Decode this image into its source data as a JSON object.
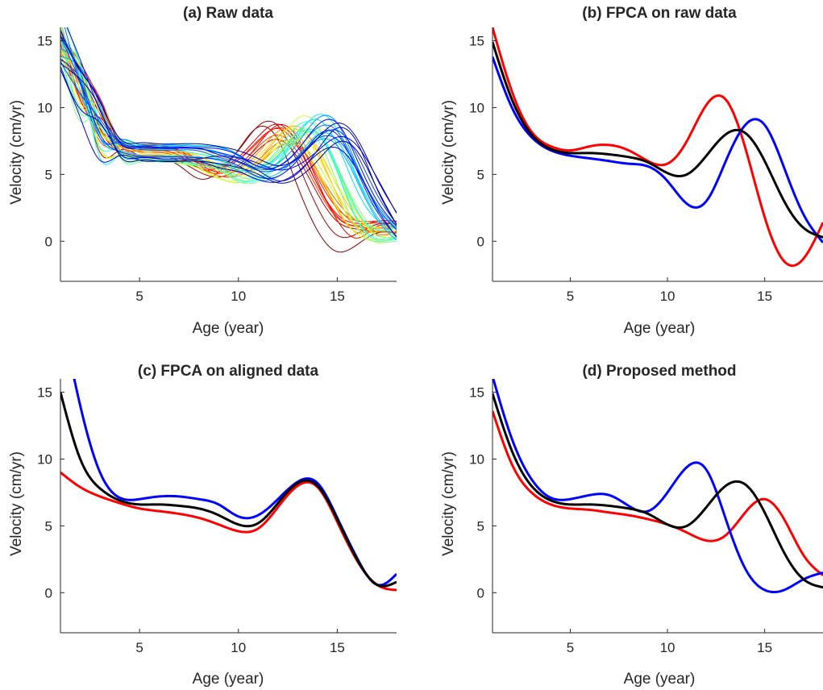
{
  "chart_data": [
    {
      "type": "line",
      "title": "(a) Raw data",
      "xlabel": "Age (year)",
      "ylabel": "Velocity (cm/yr)",
      "xlim": [
        1,
        18
      ],
      "ylim": [
        -3,
        16
      ],
      "xticks": [
        5,
        10,
        15
      ],
      "yticks": [
        0,
        5,
        10,
        15
      ],
      "grid": false,
      "style": "many individual velocity curves coloured by a jet colormap (blue to red)",
      "colormap": [
        "#00008f",
        "#0000ff",
        "#0080ff",
        "#00ffff",
        "#80ff80",
        "#ffff00",
        "#ff8000",
        "#ff0000",
        "#800000"
      ],
      "individual_curves": {
        "count": 39,
        "template_x": [
          1,
          2,
          3,
          4,
          5,
          6,
          7,
          8,
          9,
          10,
          11,
          12,
          13,
          14,
          15,
          16,
          17,
          18
        ],
        "template_y": [
          15.0,
          11.5,
          8.6,
          7.0,
          6.6,
          6.6,
          6.5,
          6.2,
          5.7,
          5.0,
          5.3,
          6.6,
          8.1,
          7.6,
          4.8,
          2.0,
          0.5,
          0.9
        ]
      }
    },
    {
      "type": "line",
      "title": "(b) FPCA on raw data",
      "xlabel": "Age (year)",
      "ylabel": "Velocity (cm/yr)",
      "xlim": [
        1,
        18
      ],
      "ylim": [
        -3,
        16
      ],
      "xticks": [
        5,
        10,
        15
      ],
      "yticks": [
        0,
        5,
        10,
        15
      ],
      "grid": false,
      "x": [
        1,
        2,
        3,
        4,
        5,
        6,
        7,
        8,
        9,
        10,
        11,
        12,
        13,
        14,
        15,
        16,
        17,
        18
      ],
      "series": [
        {
          "color": "#ff0000",
          "values": [
            16.0,
            11.2,
            8.2,
            7.1,
            6.8,
            7.1,
            7.2,
            6.8,
            6.0,
            5.8,
            7.5,
            10.2,
            10.6,
            7.0,
            1.8,
            -1.5,
            -1.3,
            1.4
          ]
        },
        {
          "color": "#0000ff",
          "values": [
            13.8,
            10.0,
            7.8,
            6.8,
            6.4,
            6.2,
            6.0,
            5.8,
            5.6,
            4.5,
            2.8,
            3.0,
            6.0,
            8.7,
            8.7,
            5.5,
            2.0,
            -0.1
          ]
        },
        {
          "color": "#000000",
          "values": [
            14.9,
            10.6,
            8.0,
            6.9,
            6.6,
            6.6,
            6.5,
            6.3,
            5.9,
            5.1,
            5.0,
            6.4,
            8.0,
            8.1,
            6.0,
            3.0,
            1.0,
            0.3
          ]
        }
      ]
    },
    {
      "type": "line",
      "title": "(c) FPCA on aligned data",
      "xlabel": "Age (year)",
      "ylabel": "Velocity (cm/yr)",
      "xlim": [
        1,
        18
      ],
      "ylim": [
        -3,
        16
      ],
      "xticks": [
        5,
        10,
        15
      ],
      "yticks": [
        0,
        5,
        10,
        15
      ],
      "grid": false,
      "x": [
        1,
        2,
        3,
        4,
        5,
        6,
        7,
        8,
        9,
        10,
        11,
        12,
        13,
        14,
        15,
        16,
        17,
        18
      ],
      "series": [
        {
          "color": "#ff0000",
          "values": [
            9.0,
            7.9,
            7.2,
            6.7,
            6.3,
            6.1,
            5.9,
            5.6,
            5.1,
            4.6,
            4.8,
            6.4,
            8.0,
            7.9,
            5.3,
            2.4,
            0.6,
            0.2
          ]
        },
        {
          "color": "#0000ff",
          "values": [
            21.0,
            14.0,
            9.0,
            7.1,
            7.0,
            7.2,
            7.2,
            7.0,
            6.6,
            5.7,
            5.8,
            7.0,
            8.3,
            8.2,
            5.6,
            2.6,
            0.6,
            1.4
          ]
        },
        {
          "color": "#000000",
          "values": [
            15.0,
            10.0,
            7.8,
            6.9,
            6.6,
            6.6,
            6.5,
            6.3,
            5.8,
            5.1,
            5.2,
            6.7,
            8.2,
            8.0,
            5.5,
            2.5,
            0.6,
            0.8
          ]
        }
      ]
    },
    {
      "type": "line",
      "title": "(d) Proposed method",
      "xlabel": "Age (year)",
      "ylabel": "Velocity (cm/yr)",
      "xlim": [
        1,
        18
      ],
      "ylim": [
        -3,
        16
      ],
      "xticks": [
        5,
        10,
        15
      ],
      "yticks": [
        0,
        5,
        10,
        15
      ],
      "grid": false,
      "x": [
        1,
        2,
        3,
        4,
        5,
        6,
        7,
        8,
        9,
        10,
        11,
        12,
        13,
        14,
        15,
        16,
        17,
        18
      ],
      "series": [
        {
          "color": "#ff0000",
          "values": [
            13.6,
            9.6,
            7.5,
            6.6,
            6.3,
            6.2,
            6.0,
            5.8,
            5.5,
            5.1,
            4.5,
            3.9,
            4.3,
            6.0,
            7.0,
            5.5,
            2.8,
            1.3
          ]
        },
        {
          "color": "#0000ff",
          "values": [
            16.2,
            11.5,
            8.5,
            7.1,
            7.0,
            7.3,
            7.3,
            6.5,
            6.1,
            7.5,
            9.4,
            9.2,
            5.5,
            1.8,
            0.2,
            0.2,
            1.0,
            1.5
          ]
        },
        {
          "color": "#000000",
          "values": [
            14.9,
            10.6,
            8.0,
            6.9,
            6.6,
            6.6,
            6.5,
            6.3,
            5.9,
            5.1,
            5.0,
            6.4,
            8.0,
            8.1,
            6.0,
            3.0,
            1.0,
            0.4
          ]
        }
      ]
    }
  ]
}
